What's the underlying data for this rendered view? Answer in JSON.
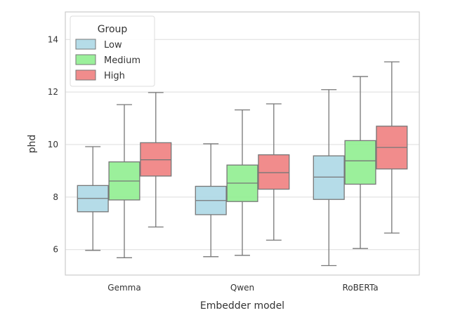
{
  "chart_data": {
    "type": "box",
    "xlabel": "Embedder model",
    "ylabel": "phd",
    "categories": [
      "Gemma",
      "Qwen",
      "RoBERTa"
    ],
    "ylim": [
      5.03,
      15.05
    ],
    "yticks": [
      6,
      8,
      10,
      12,
      14
    ],
    "grid": true,
    "legend": {
      "title": "Group",
      "placement": "top-left"
    },
    "series": [
      {
        "name": "Low",
        "color": "#add8e6",
        "boxes": [
          {
            "whislo": 5.97,
            "q1": 7.44,
            "med": 7.95,
            "q3": 8.44,
            "whishi": 9.92
          },
          {
            "whislo": 5.73,
            "q1": 7.33,
            "med": 7.87,
            "q3": 8.41,
            "whishi": 10.03
          },
          {
            "whislo": 5.39,
            "q1": 7.91,
            "med": 8.76,
            "q3": 9.57,
            "whishi": 12.09
          }
        ]
      },
      {
        "name": "Medium",
        "color": "#90ee90",
        "boxes": [
          {
            "whislo": 5.69,
            "q1": 7.89,
            "med": 8.61,
            "q3": 9.34,
            "whishi": 11.52
          },
          {
            "whislo": 5.78,
            "q1": 7.83,
            "med": 8.53,
            "q3": 9.22,
            "whishi": 11.32
          },
          {
            "whislo": 6.04,
            "q1": 8.49,
            "med": 9.38,
            "q3": 10.15,
            "whishi": 12.59
          }
        ]
      },
      {
        "name": "High",
        "color": "#f08080",
        "boxes": [
          {
            "whislo": 6.86,
            "q1": 8.8,
            "med": 9.42,
            "q3": 10.07,
            "whishi": 11.98
          },
          {
            "whislo": 6.36,
            "q1": 8.3,
            "med": 8.93,
            "q3": 9.61,
            "whishi": 11.55
          },
          {
            "whislo": 6.63,
            "q1": 9.07,
            "med": 9.89,
            "q3": 10.7,
            "whishi": 13.15
          }
        ]
      }
    ]
  }
}
